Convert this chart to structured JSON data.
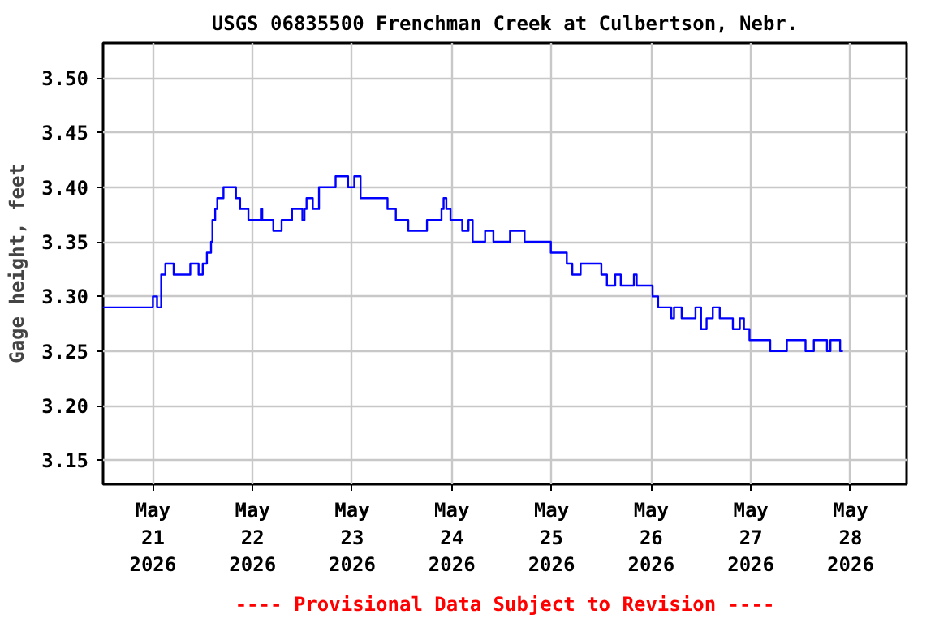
{
  "chart_data": {
    "type": "step",
    "title": "USGS 06835500 Frenchman Creek at Culbertson, Nebr.",
    "ylabel": "Gage height, feet",
    "annotations": [
      "---- Provisional Data Subject to Revision ----"
    ],
    "x": [
      "2026-05-20T12:00",
      "2026-05-21T00:00",
      "2026-05-21T01:00",
      "2026-05-21T02:00",
      "2026-05-21T03:00",
      "2026-05-21T05:00",
      "2026-05-21T09:00",
      "2026-05-21T11:00",
      "2026-05-21T12:00",
      "2026-05-21T13:00",
      "2026-05-21T14:00",
      "2026-05-21T14:20",
      "2026-05-21T15:00",
      "2026-05-21T15:30",
      "2026-05-21T17:00",
      "2026-05-21T20:00",
      "2026-05-21T21:00",
      "2026-05-21T23:00",
      "2026-05-22T02:00",
      "2026-05-22T02:20",
      "2026-05-22T05:00",
      "2026-05-22T07:00",
      "2026-05-22T09:30",
      "2026-05-22T12:00",
      "2026-05-22T12:30",
      "2026-05-22T13:00",
      "2026-05-22T14:30",
      "2026-05-22T16:00",
      "2026-05-22T20:00",
      "2026-05-22T23:00",
      "2026-05-23T00:30",
      "2026-05-23T02:00",
      "2026-05-23T08:30",
      "2026-05-23T10:30",
      "2026-05-23T13:30",
      "2026-05-23T18:00",
      "2026-05-23T21:30",
      "2026-05-23T22:00",
      "2026-05-23T22:40",
      "2026-05-23T23:40",
      "2026-05-24T02:30",
      "2026-05-24T04:00",
      "2026-05-24T05:00",
      "2026-05-24T08:00",
      "2026-05-24T10:00",
      "2026-05-24T14:00",
      "2026-05-24T17:30",
      "2026-05-24T23:50",
      "2026-05-25T03:40",
      "2026-05-25T05:00",
      "2026-05-25T07:00",
      "2026-05-25T12:00",
      "2026-05-25T13:20",
      "2026-05-25T15:20",
      "2026-05-25T16:40",
      "2026-05-25T19:50",
      "2026-05-25T20:30",
      "2026-05-26T00:20",
      "2026-05-26T01:40",
      "2026-05-26T04:50",
      "2026-05-26T05:30",
      "2026-05-26T07:20",
      "2026-05-26T10:40",
      "2026-05-26T12:00",
      "2026-05-26T13:20",
      "2026-05-26T14:50",
      "2026-05-26T16:30",
      "2026-05-26T19:40",
      "2026-05-26T21:20",
      "2026-05-26T22:20",
      "2026-05-26T23:40",
      "2026-05-27T04:40",
      "2026-05-27T08:40",
      "2026-05-27T13:10",
      "2026-05-27T15:10",
      "2026-05-27T18:20",
      "2026-05-27T19:10",
      "2026-05-27T21:30",
      "2026-05-27T22:10"
    ],
    "values": [
      3.29,
      3.3,
      3.29,
      3.32,
      3.33,
      3.32,
      3.33,
      3.32,
      3.33,
      3.34,
      3.35,
      3.37,
      3.38,
      3.39,
      3.4,
      3.39,
      3.38,
      3.37,
      3.38,
      3.37,
      3.36,
      3.37,
      3.38,
      3.37,
      3.38,
      3.39,
      3.38,
      3.4,
      3.41,
      3.4,
      3.41,
      3.39,
      3.38,
      3.37,
      3.36,
      3.37,
      3.38,
      3.39,
      3.38,
      3.37,
      3.36,
      3.37,
      3.35,
      3.36,
      3.35,
      3.36,
      3.35,
      3.34,
      3.33,
      3.32,
      3.33,
      3.32,
      3.31,
      3.32,
      3.31,
      3.32,
      3.31,
      3.3,
      3.29,
      3.28,
      3.29,
      3.28,
      3.29,
      3.27,
      3.28,
      3.29,
      3.28,
      3.27,
      3.28,
      3.27,
      3.26,
      3.25,
      3.26,
      3.25,
      3.26,
      3.25,
      3.26,
      3.25,
      3.25
    ],
    "color": "#0000ff",
    "ylim": [
      3.128,
      3.532
    ],
    "yticks": [
      {
        "value": 3.15,
        "label": "3.15"
      },
      {
        "value": 3.2,
        "label": "3.20"
      },
      {
        "value": 3.25,
        "label": "3.25"
      },
      {
        "value": 3.3,
        "label": "3.30"
      },
      {
        "value": 3.35,
        "label": "3.35"
      },
      {
        "value": 3.4,
        "label": "3.40"
      },
      {
        "value": 3.45,
        "label": "3.45"
      },
      {
        "value": 3.5,
        "label": "3.50"
      }
    ],
    "xlim": [
      "2026-05-20T12:00",
      "2026-05-28T13:30"
    ],
    "xticks": [
      {
        "value": "2026-05-21",
        "label": "May\n21\n2026"
      },
      {
        "value": "2026-05-22",
        "label": "May\n22\n2026"
      },
      {
        "value": "2026-05-23",
        "label": "May\n23\n2026"
      },
      {
        "value": "2026-05-24",
        "label": "May\n24\n2026"
      },
      {
        "value": "2026-05-25",
        "label": "May\n25\n2026"
      },
      {
        "value": "2026-05-26",
        "label": "May\n26\n2026"
      },
      {
        "value": "2026-05-27",
        "label": "May\n27\n2026"
      },
      {
        "value": "2026-05-28",
        "label": "May\n28\n2026"
      }
    ],
    "grid": true
  }
}
